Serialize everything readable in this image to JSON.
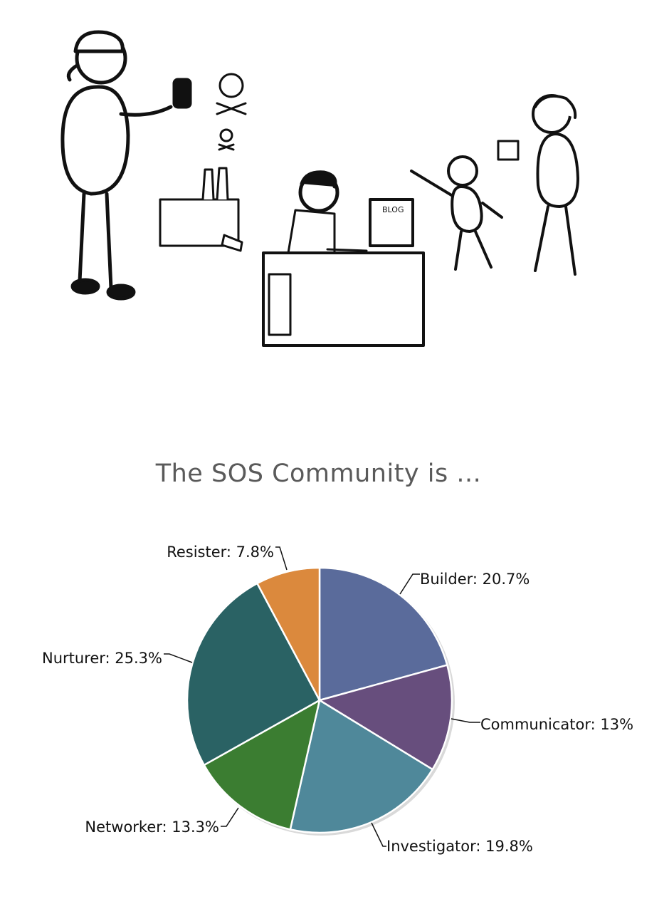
{
  "chart_data": {
    "type": "pie",
    "title": "The SOS Community is ...",
    "slices": [
      {
        "name": "Builder",
        "value": 20.7,
        "label": "Builder: 20.7%",
        "color": "#5a6b9b"
      },
      {
        "name": "Communicator",
        "value": 13,
        "label": "Communicator: 13%",
        "color": "#674e7d"
      },
      {
        "name": "Investigator",
        "value": 19.8,
        "label": "Investigator: 19.8%",
        "color": "#4f889a"
      },
      {
        "name": "Networker",
        "value": 13.3,
        "label": "Networker: 13.3%",
        "color": "#3b7d31"
      },
      {
        "name": "Nurturer",
        "value": 25.3,
        "label": "Nurturer: 25.3%",
        "color": "#2a6264"
      },
      {
        "name": "Resister",
        "value": 7.8,
        "label": "Resister: 7.8%",
        "color": "#db893d"
      }
    ],
    "legend": "none",
    "grid": false
  },
  "illustration": {
    "monitor_text": "BLOG"
  }
}
